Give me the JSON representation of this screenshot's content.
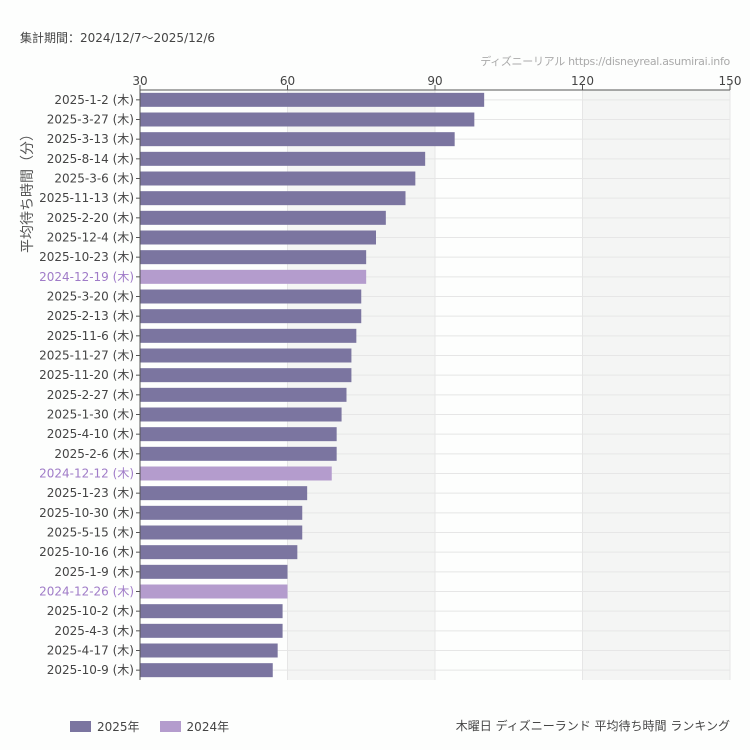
{
  "header": {
    "period": "集計期間：2024/12/7〜2025/12/6",
    "credit": "ディズニーリアル https://disneyreal.asumirai.info"
  },
  "footer": {
    "title": "木曜日 ディズニーランド 平均待ち時間 ランキング"
  },
  "colors": {
    "2025": "#7b75a0",
    "2024": "#b49ccd",
    "label2024": "#a07cc8"
  },
  "chart_data": {
    "type": "bar",
    "orientation": "horizontal",
    "ylabel": "平均待ち時間（分）",
    "xlim": [
      30,
      150
    ],
    "xticks": [
      "30",
      "60",
      "90",
      "120",
      "150"
    ],
    "grid": true,
    "legend_position": "bottom-left",
    "legend": [
      {
        "name": "2025年",
        "color": "#7b75a0"
      },
      {
        "name": "2024年",
        "color": "#b49ccd"
      }
    ],
    "categories": [
      "2025-1-2 (木)",
      "2025-3-27 (木)",
      "2025-3-13 (木)",
      "2025-8-14 (木)",
      "2025-3-6 (木)",
      "2025-11-13 (木)",
      "2025-2-20 (木)",
      "2025-12-4 (木)",
      "2025-10-23 (木)",
      "2024-12-19 (木)",
      "2025-3-20 (木)",
      "2025-2-13 (木)",
      "2025-11-6 (木)",
      "2025-11-27 (木)",
      "2025-11-20 (木)",
      "2025-2-27 (木)",
      "2025-1-30 (木)",
      "2025-4-10 (木)",
      "2025-2-6 (木)",
      "2024-12-12 (木)",
      "2025-1-23 (木)",
      "2025-10-30 (木)",
      "2025-5-15 (木)",
      "2025-10-16 (木)",
      "2025-1-9 (木)",
      "2024-12-26 (木)",
      "2025-10-2 (木)",
      "2025-4-3 (木)",
      "2025-4-17 (木)",
      "2025-10-9 (木)"
    ],
    "values": [
      100,
      98,
      94,
      88,
      86,
      84,
      80,
      78,
      76,
      76,
      75,
      75,
      74,
      73,
      73,
      72,
      71,
      70,
      70,
      69,
      64,
      63,
      63,
      62,
      60,
      60,
      59,
      59,
      58,
      57
    ],
    "year": [
      "2025",
      "2025",
      "2025",
      "2025",
      "2025",
      "2025",
      "2025",
      "2025",
      "2025",
      "2024",
      "2025",
      "2025",
      "2025",
      "2025",
      "2025",
      "2025",
      "2025",
      "2025",
      "2025",
      "2024",
      "2025",
      "2025",
      "2025",
      "2025",
      "2025",
      "2024",
      "2025",
      "2025",
      "2025",
      "2025"
    ]
  }
}
